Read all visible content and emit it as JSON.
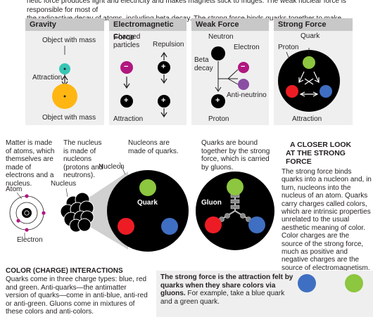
{
  "intro": {
    "line1": "netic force produces light and electricity and makes magnets stick to fridges. The weak nuclear force is responsible for most of",
    "line2": "the radioactive decay of atoms, including beta decay. The strong force binds quarks together to make protons and neutrons."
  },
  "panels": {
    "gravity": {
      "title": "Gravity",
      "object_top": "Object with mass",
      "attraction": "Attraction",
      "object_bottom": "Object with mass"
    },
    "em": {
      "title": "Electromagnetic Force",
      "charged": "Charged particles",
      "repulsion": "Repulsion",
      "attraction": "Attraction"
    },
    "weak": {
      "title": "Weak Force",
      "neutron": "Neutron",
      "beta": "Beta decay",
      "electron": "Electron",
      "anti": "Anti-neutrino",
      "proton": "Proton"
    },
    "strong": {
      "title": "Strong Force",
      "quark": "Quark",
      "proton": "Proton",
      "attraction": "Attraction"
    }
  },
  "symbols": {
    "minus": "−",
    "plus": "+"
  },
  "scale": {
    "matter": "Matter is made of atoms, which themselves are made of electrons and a nucleus.",
    "nucleus_text": "The nucleus is made of nucleons (protons and neutrons).",
    "nucleons_text": "Nucleons are made of quarks.",
    "quarks_text": "Quarks are bound together by the strong force, which is carried by gluons.",
    "atom": "Atom",
    "nucleus": "Nucleus",
    "electron": "Electron",
    "nucleon": "Nucleon",
    "quark": "Quark",
    "gluon": "Gluon"
  },
  "sidebar": {
    "title_line1": "A CLOSER LOOK",
    "title_line2": "AT THE STRONG FORCE",
    "body": "The strong force binds quarks into a nucleon and, in turn, nucleons into the nucleus of an atom. Quarks carry charges called colors, which are intrinsic properties unrelated to the usual aesthetic meaning of color. Color charges are the source of the strong force, much as positive and negative charges are the source of electromagnetism."
  },
  "color_section": {
    "title": "COLOR (CHARGE) INTERACTIONS",
    "body": "Quarks come in three charge types: blue, red and green. Anti-quarks—the antimatter version of quarks—come in anti-blue, anti-red or anti-green. Gluons come in mixtures of these colors and anti-colors.",
    "strong_bold": "The strong force is the attraction felt by quarks when they share colors via gluons.",
    "strong_rest": "For example, take a blue quark and a green quark."
  },
  "colors": {
    "panel_bg": "#efefef",
    "header_bg": "#c8c8c8",
    "gravity_small": "#37c6b6",
    "gravity_large": "#ffb612",
    "minus_particle": "#b0177f",
    "antineutrino": "#8a4fa3",
    "quark_green": "#8dc63f",
    "quark_red": "#ed1c24",
    "quark_blue": "#3f6fc2"
  }
}
